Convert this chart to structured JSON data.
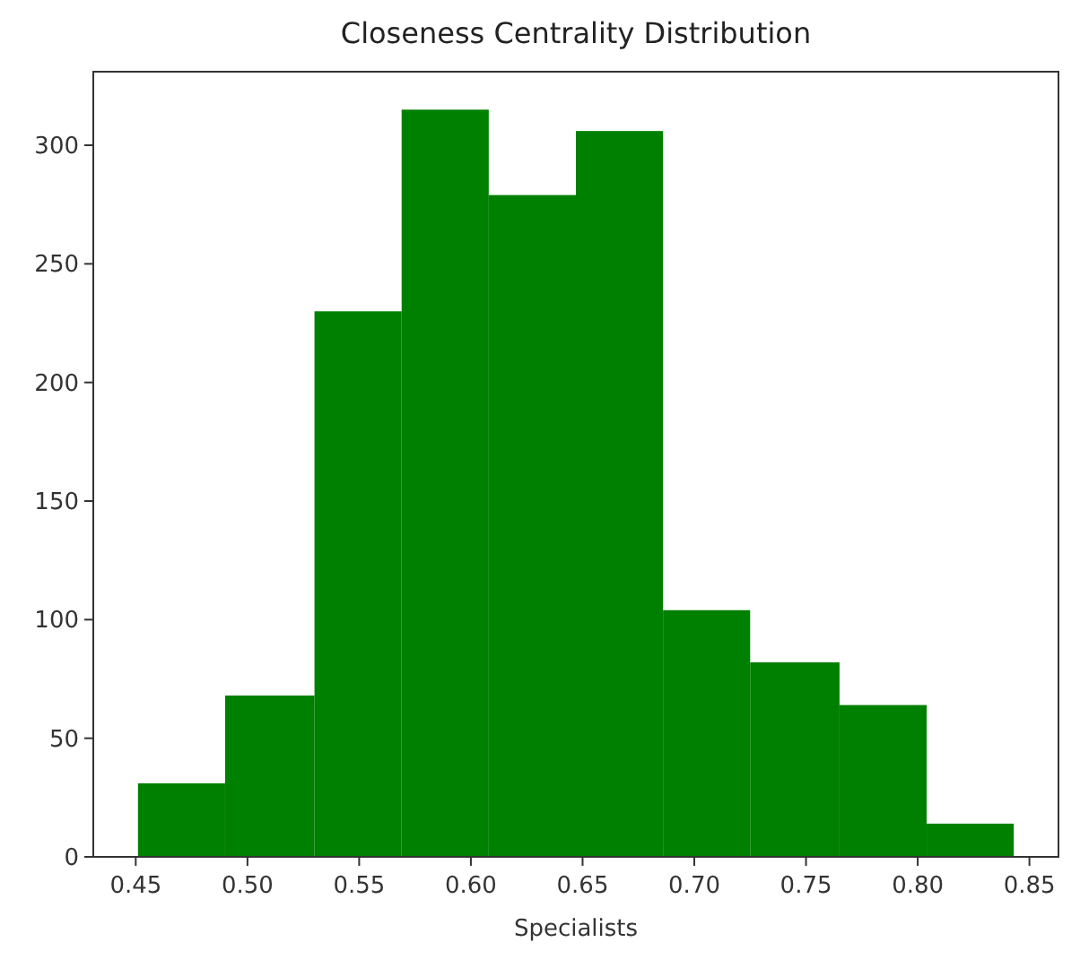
{
  "chart_data": {
    "type": "histogram",
    "title": "Closeness Centrality Distribution",
    "xlabel": "Specialists",
    "bins": [
      0.451,
      0.49,
      0.53,
      0.569,
      0.608,
      0.647,
      0.686,
      0.725,
      0.765,
      0.804,
      0.843
    ],
    "values": [
      31,
      68,
      230,
      315,
      279,
      306,
      104,
      82,
      64,
      14
    ],
    "color": "#008000",
    "xlim": [
      0.431,
      0.863
    ],
    "xticks": [
      {
        "value": 0.45,
        "label": "0.45"
      },
      {
        "value": 0.5,
        "label": "0.50"
      },
      {
        "value": 0.55,
        "label": "0.55"
      },
      {
        "value": 0.6,
        "label": "0.60"
      },
      {
        "value": 0.65,
        "label": "0.65"
      },
      {
        "value": 0.7,
        "label": "0.70"
      },
      {
        "value": 0.75,
        "label": "0.75"
      },
      {
        "value": 0.8,
        "label": "0.80"
      },
      {
        "value": 0.85,
        "label": "0.85"
      }
    ],
    "ylim": [
      0,
      331
    ],
    "yticks": [
      0,
      50,
      100,
      150,
      200,
      250,
      300
    ]
  }
}
